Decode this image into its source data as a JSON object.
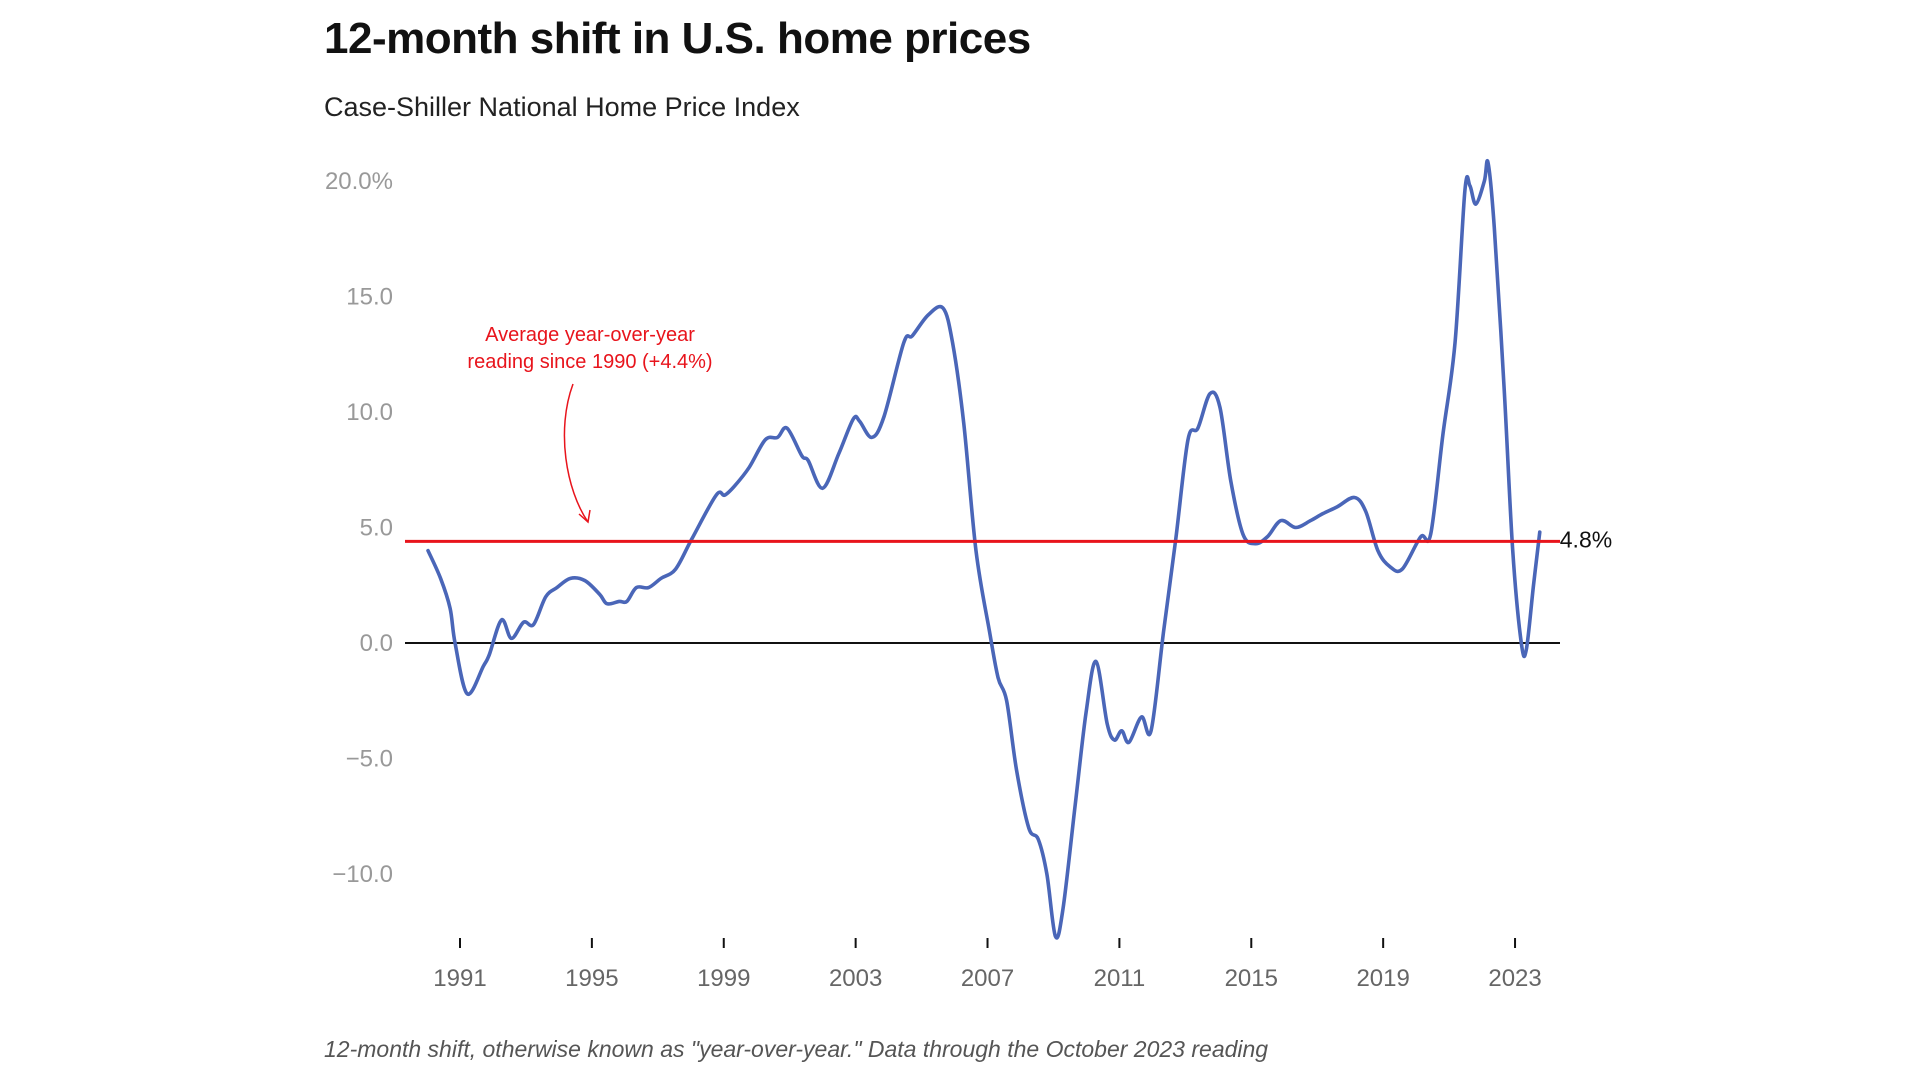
{
  "chart_data": {
    "type": "line",
    "title": "12-month shift in U.S. home prices",
    "subtitle": "Case-Shiller National Home Price Index",
    "note": "12-month shift, otherwise known as \"year-over-year.\" Data through the October 2023 reading",
    "xlabel": "",
    "ylabel": "",
    "xlim": [
      1989.6,
      2024.8
    ],
    "ylim": [
      -12.9,
      22
    ],
    "y_ticks": [
      {
        "value": 20,
        "label": "20.0%"
      },
      {
        "value": 15,
        "label": "15.0"
      },
      {
        "value": 10,
        "label": "10.0"
      },
      {
        "value": 5,
        "label": "5.0"
      },
      {
        "value": 0,
        "label": "0.0"
      },
      {
        "value": -5,
        "label": "−5.0"
      },
      {
        "value": -10,
        "label": "−10.0"
      }
    ],
    "x_ticks": [
      {
        "value": 1991,
        "label": "1991"
      },
      {
        "value": 1995,
        "label": "1995"
      },
      {
        "value": 1999,
        "label": "1999"
      },
      {
        "value": 2003,
        "label": "2003"
      },
      {
        "value": 2007,
        "label": "2007"
      },
      {
        "value": 2011,
        "label": "2011"
      },
      {
        "value": 2015,
        "label": "2015"
      },
      {
        "value": 2019,
        "label": "2019"
      },
      {
        "value": 2023,
        "label": "2023"
      }
    ],
    "grid": false,
    "reference_line": {
      "value": 4.4,
      "color": "#e8141c",
      "annotation": [
        "Average year-over-year",
        "reading since 1990 (+4.4%)"
      ]
    },
    "end_label": "4.8%",
    "series": [
      {
        "name": "12-month shift",
        "color": "#4a66b8",
        "x": [
          1990.03,
          1990.41,
          1990.7,
          1990.85,
          1991.22,
          1991.71,
          1991.89,
          1992.26,
          1992.56,
          1992.93,
          1993.23,
          1993.6,
          1993.94,
          1994.35,
          1994.79,
          1995.24,
          1995.46,
          1995.83,
          1996.06,
          1996.35,
          1996.72,
          1997.1,
          1997.54,
          1998.03,
          1998.77,
          1999.03,
          1999.33,
          1999.77,
          2000.26,
          2000.63,
          2000.92,
          2001.37,
          2001.56,
          2002.0,
          2002.49,
          2002.93,
          2003.12,
          2003.49,
          2003.86,
          2004.46,
          2004.72,
          2005.2,
          2005.65,
          2005.94,
          2006.28,
          2006.65,
          2007.06,
          2007.32,
          2007.58,
          2007.88,
          2008.25,
          2008.54,
          2008.8,
          2009.06,
          2009.29,
          2009.66,
          2009.99,
          2010.29,
          2010.63,
          2010.85,
          2011.07,
          2011.29,
          2011.67,
          2011.96,
          2012.34,
          2012.71,
          2013.08,
          2013.38,
          2013.75,
          2014.05,
          2014.38,
          2014.75,
          2015.12,
          2015.49,
          2015.9,
          2016.35,
          2016.8,
          2017.17,
          2017.61,
          2018.13,
          2018.47,
          2018.84,
          2019.21,
          2019.58,
          2020.14,
          2020.44,
          2020.81,
          2021.18,
          2021.48,
          2021.63,
          2021.81,
          2022.07,
          2022.18,
          2022.37,
          2022.67,
          2022.93,
          2023.19,
          2023.34,
          2023.56,
          2023.75
        ],
        "values": [
          4.0,
          2.8,
          1.5,
          0.0,
          -2.2,
          -1.0,
          -0.5,
          1.0,
          0.2,
          0.9,
          0.8,
          2.0,
          2.4,
          2.8,
          2.7,
          2.1,
          1.7,
          1.8,
          1.8,
          2.4,
          2.4,
          2.8,
          3.2,
          4.5,
          6.4,
          6.4,
          6.8,
          7.6,
          8.8,
          8.9,
          9.3,
          8.1,
          7.9,
          6.7,
          8.2,
          9.7,
          9.6,
          8.9,
          9.8,
          13.0,
          13.3,
          14.2,
          14.5,
          13.0,
          9.5,
          4.0,
          0.5,
          -1.5,
          -2.5,
          -5.5,
          -8.0,
          -8.5,
          -10.0,
          -12.7,
          -11.5,
          -7.0,
          -3.0,
          -0.8,
          -3.5,
          -4.2,
          -3.8,
          -4.3,
          -3.2,
          -3.8,
          0.5,
          4.5,
          8.8,
          9.3,
          10.8,
          10.2,
          7.0,
          4.7,
          4.3,
          4.6,
          5.3,
          5.0,
          5.3,
          5.6,
          5.9,
          6.3,
          5.7,
          4.0,
          3.3,
          3.2,
          4.6,
          4.7,
          9.0,
          13.0,
          19.6,
          19.8,
          19.0,
          20.0,
          20.8,
          18.0,
          11.0,
          4.0,
          0.0,
          -0.3,
          2.5,
          4.8
        ]
      }
    ]
  }
}
